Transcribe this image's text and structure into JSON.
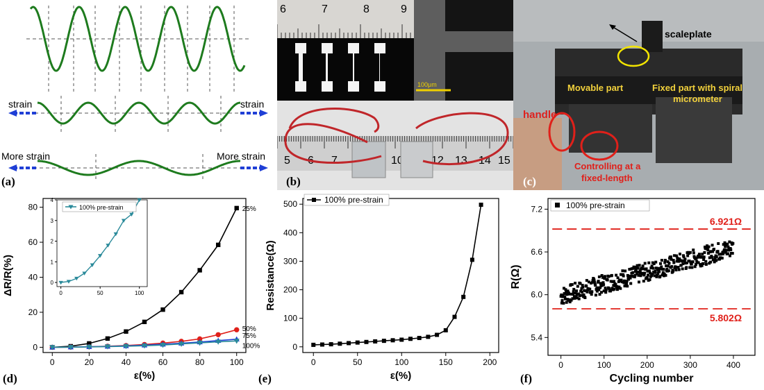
{
  "panel_labels": {
    "a": "(a)",
    "b": "(b)",
    "c": "(c)",
    "d": "(d)",
    "e": "(e)",
    "f": "(f)"
  },
  "panel_a": {
    "strain_left": "strain",
    "strain_right": "strain",
    "more_strain_left": "More strain",
    "more_strain_right": "More strain",
    "wave_color": "#1e7b1e",
    "arrow_color": "#1f3fd6"
  },
  "panel_b": {
    "ruler_top_ticks": [
      "6",
      "7",
      "8",
      "9"
    ],
    "sem_scale": "100μm",
    "ruler_bottom_ticks": [
      "5",
      "6",
      "7",
      "10",
      "12",
      "13",
      "14",
      "15"
    ]
  },
  "panel_c": {
    "scaleplate": "scaleplate",
    "movable_part": "Movable part",
    "fixed_part_line1": "Fixed part  with spiral",
    "fixed_part_line2": "micrometer",
    "handle": "handle",
    "controlling_line1": "Controlling at a",
    "controlling_line2": "fixed-length",
    "annotation_color": "#e0201a",
    "label_color": "#f2d13c"
  },
  "chart_data": [
    {
      "type": "line",
      "panel": "d",
      "xlabel": "ε(%)",
      "ylabel": "ΔR/R(%)",
      "xlim": [
        -5,
        105
      ],
      "ylim": [
        -3,
        85
      ],
      "xticks": [
        "0",
        "20",
        "40",
        "60",
        "80",
        "100"
      ],
      "yticks": [
        "0",
        "20",
        "40",
        "60",
        "80"
      ],
      "x": [
        0,
        10,
        20,
        30,
        40,
        50,
        60,
        70,
        80,
        90,
        100
      ],
      "series": [
        {
          "name": "25%",
          "color": "#000000",
          "marker": "square",
          "values": [
            0,
            0.6,
            2.2,
            5,
            9,
            14.5,
            21.5,
            31.5,
            44,
            58.5,
            79.5
          ]
        },
        {
          "name": "50%",
          "color": "#e0201a",
          "marker": "circle",
          "values": [
            0,
            0.1,
            0.3,
            0.6,
            1.0,
            1.6,
            2.4,
            3.4,
            4.8,
            7.2,
            10
          ]
        },
        {
          "name": "75%",
          "color": "#1f3fd6",
          "marker": "triangle",
          "values": [
            0,
            0.1,
            0.3,
            0.5,
            0.8,
            1.2,
            1.7,
            2.3,
            3.0,
            3.8,
            4.6
          ]
        },
        {
          "name": "100%",
          "color": "#2a8a9a",
          "marker": "triangle-down",
          "values": [
            0,
            0.05,
            0.2,
            0.4,
            0.6,
            0.9,
            1.3,
            1.9,
            2.5,
            3.1,
            3.6
          ]
        }
      ],
      "inset": {
        "legend": "100% pre-strain",
        "xlim": [
          -5,
          110
        ],
        "ylim": [
          -0.2,
          4
        ],
        "xticks": [
          "0",
          "50",
          "100"
        ],
        "yticks": [
          "0",
          "1",
          "2",
          "3",
          "4"
        ],
        "x": [
          0,
          10,
          20,
          30,
          40,
          50,
          60,
          70,
          80,
          90,
          100
        ],
        "values": [
          0,
          0.05,
          0.2,
          0.45,
          0.85,
          1.3,
          1.8,
          2.35,
          3.0,
          3.3,
          4.0
        ],
        "color": "#2a8a9a"
      }
    },
    {
      "type": "line",
      "panel": "e",
      "legend": "100% pre-strain",
      "xlabel": "ε(%)",
      "ylabel": "Resistance(Ω)",
      "xlim": [
        -12,
        210
      ],
      "ylim": [
        -20,
        520
      ],
      "xticks": [
        "0",
        "50",
        "100",
        "150",
        "200"
      ],
      "yticks": [
        "0",
        "100",
        "200",
        "300",
        "400",
        "500"
      ],
      "x": [
        0,
        10,
        20,
        30,
        40,
        50,
        60,
        70,
        80,
        90,
        100,
        110,
        120,
        130,
        140,
        150,
        160,
        170,
        180,
        190
      ],
      "values": [
        7,
        8,
        9,
        11,
        13,
        15,
        17,
        19,
        21,
        23,
        25,
        28,
        31,
        35,
        42,
        58,
        105,
        175,
        305,
        498
      ],
      "color": "#000000"
    },
    {
      "type": "scatter",
      "panel": "f",
      "legend": "100% pre-strain",
      "xlabel": "Cycling number",
      "ylabel": "R(Ω)",
      "xlim": [
        -30,
        450
      ],
      "ylim": [
        5.15,
        7.35
      ],
      "xticks": [
        "0",
        "100",
        "200",
        "300",
        "400"
      ],
      "yticks": [
        "5.4",
        "6.0",
        "6.6",
        "7.2"
      ],
      "upper_line": {
        "value": 6.921,
        "label": "6.921Ω"
      },
      "lower_line": {
        "value": 5.802,
        "label": "5.802Ω"
      },
      "line_color": "#e0201a",
      "n_points": 400,
      "trend": {
        "start": 5.98,
        "end": 6.66,
        "spread": 0.13
      },
      "color": "#000000"
    }
  ]
}
